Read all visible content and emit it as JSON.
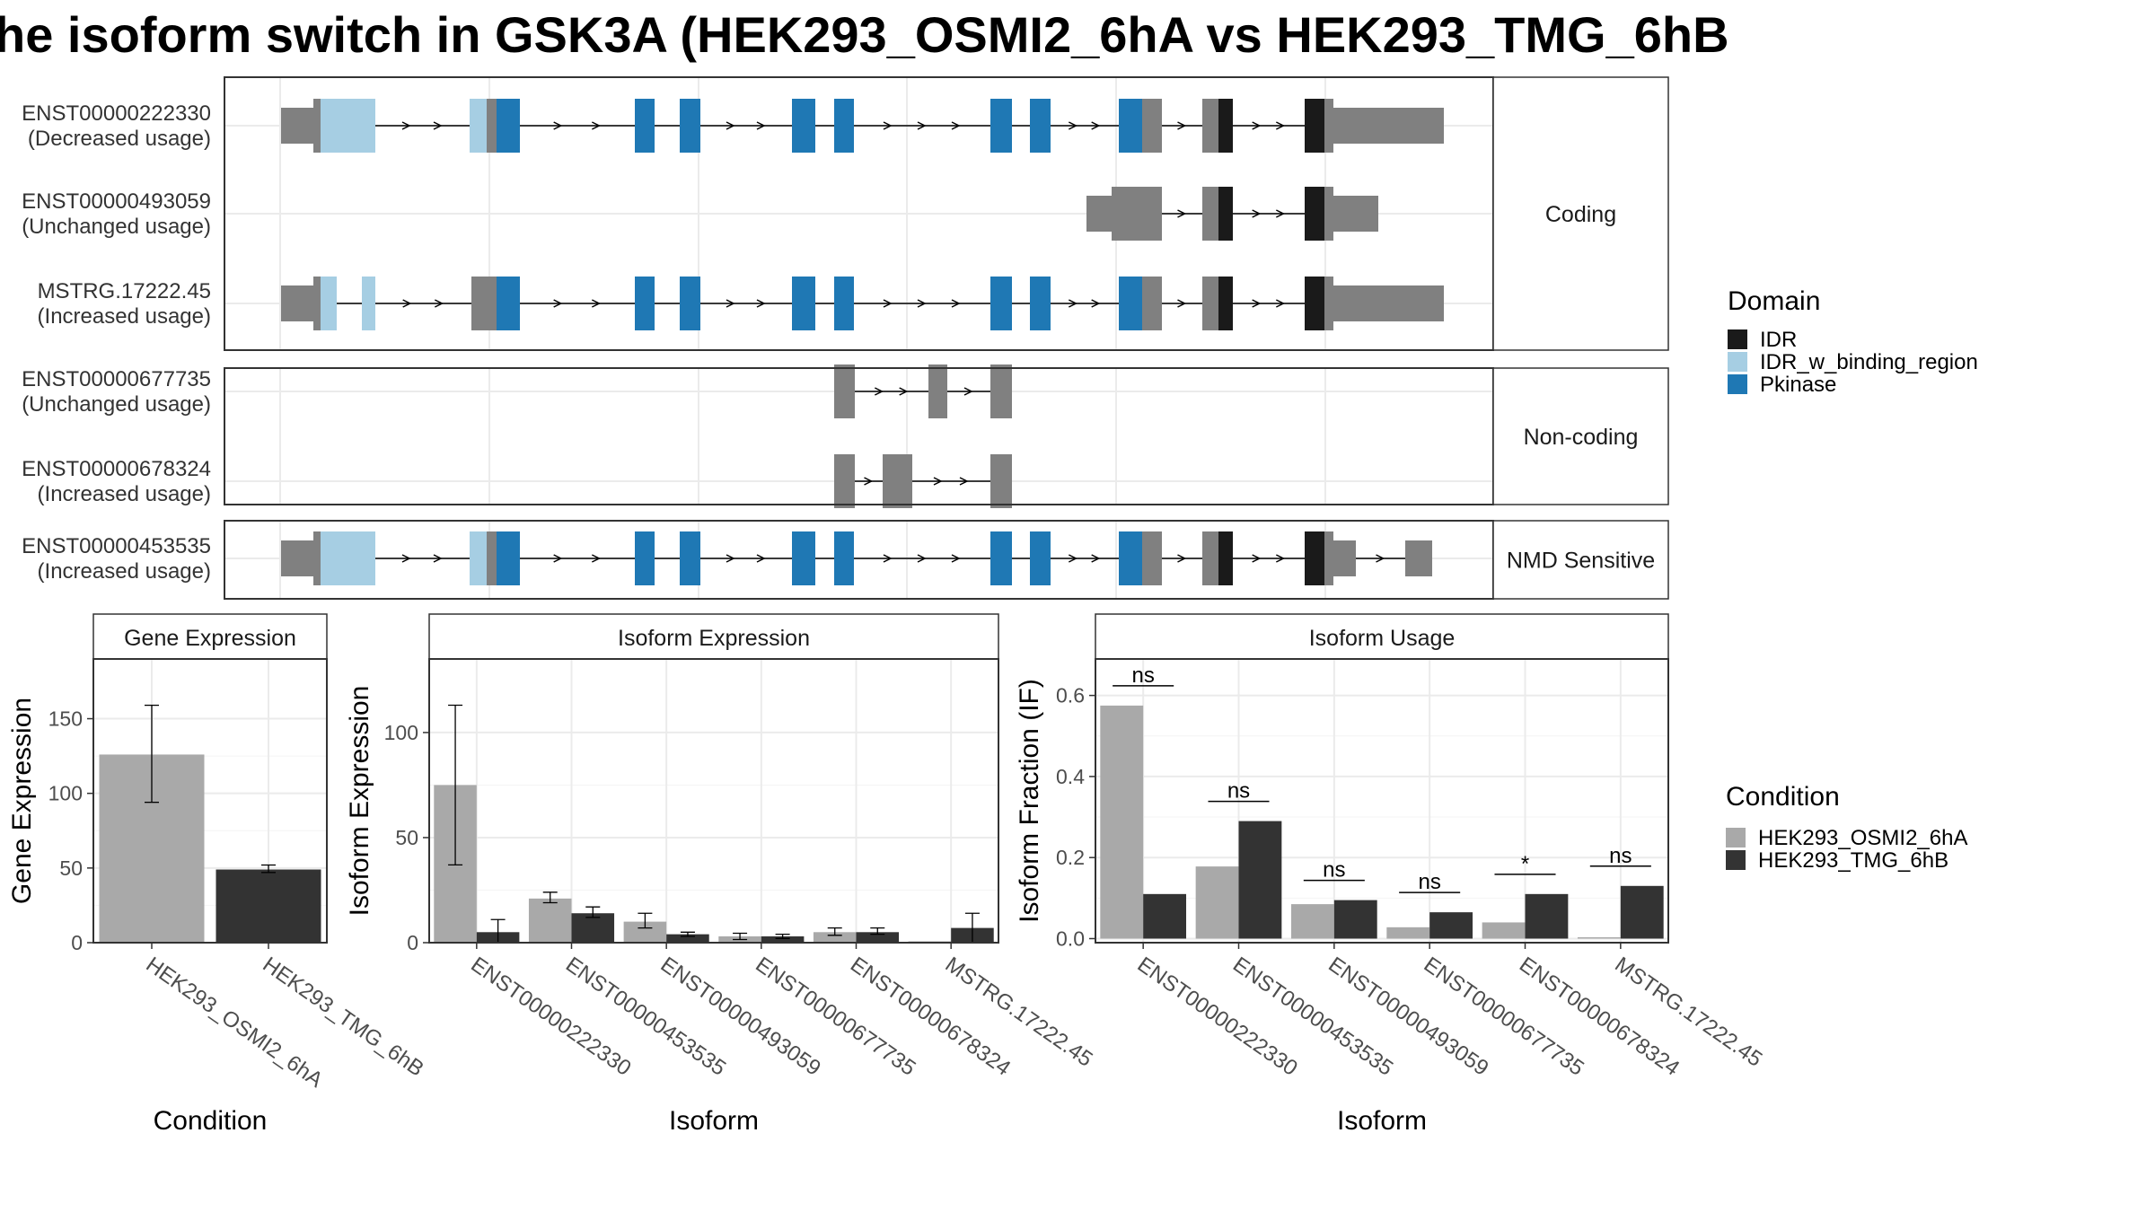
{
  "title": "he isoform switch in GSK3A (HEK293_OSMI2_6hA vs HEK293_TMG_6hB",
  "colors": {
    "IDR": "#1a1a1a",
    "IDR_w_binding_region": "#a6cee3",
    "Pkinase": "#1f78b4",
    "exon": "#808080",
    "cond_a": "#a9a9a9",
    "cond_b": "#333333",
    "panel_bg": "#ffffff",
    "strip_bg": "#ffffff",
    "grid": "#ebebeb",
    "border": "#333333"
  },
  "legend_domain": {
    "title": "Domain",
    "items": [
      {
        "label": "IDR",
        "color": "#1a1a1a"
      },
      {
        "label": "IDR_w_binding_region",
        "color": "#a6cee3"
      },
      {
        "label": "Pkinase",
        "color": "#1f78b4"
      }
    ]
  },
  "legend_condition": {
    "title": "Condition",
    "items": [
      {
        "label": "HEK293_OSMI2_6hA",
        "color": "#a9a9a9"
      },
      {
        "label": "HEK293_TMG_6hB",
        "color": "#333333"
      }
    ]
  },
  "structure_groups": [
    {
      "label": "Coding",
      "tracks": [
        {
          "id": "ENST00000222330",
          "usage": "(Decreased usage)"
        },
        {
          "id": "ENST00000493059",
          "usage": "(Unchanged usage)"
        },
        {
          "id": "MSTRG.17222.45",
          "usage": "(Increased usage)"
        }
      ]
    },
    {
      "label": "Non-coding",
      "tracks": [
        {
          "id": "ENST00000677735",
          "usage": "(Unchanged usage)"
        },
        {
          "id": "ENST00000678324",
          "usage": "(Increased usage)"
        }
      ]
    },
    {
      "label": "NMD Sensitive",
      "tracks": [
        {
          "id": "ENST00000453535",
          "usage": "(Increased usage)"
        }
      ]
    }
  ],
  "chart_data": [
    {
      "type": "bar",
      "panel": "Gene Expression",
      "xlabel": "Condition",
      "ylabel": "Gene Expression",
      "ylim": [
        0,
        190
      ],
      "yticks": [
        0,
        50,
        100,
        150
      ],
      "categories": [
        "HEK293_OSMI2_6hA",
        "HEK293_TMG_6hB"
      ],
      "series": [
        {
          "values": [
            126,
            49
          ],
          "errors": [
            [
              94,
              159
            ],
            [
              47,
              52
            ]
          ]
        }
      ],
      "grid": true
    },
    {
      "type": "bar",
      "panel": "Isoform Expression",
      "xlabel": "Isoform",
      "ylabel": "Isoform Expression",
      "ylim": [
        0,
        135
      ],
      "yticks": [
        0,
        50,
        100
      ],
      "categories": [
        "ENST00000222330",
        "ENST00000453535",
        "ENST00000493059",
        "ENST00000677735",
        "ENST00000678324",
        "MSTRG.17222.45"
      ],
      "series": [
        {
          "name": "HEK293_OSMI2_6hA",
          "values": [
            75,
            21,
            10,
            3,
            5,
            0
          ],
          "errors": [
            [
              37,
              113
            ],
            [
              19,
              24
            ],
            [
              7,
              14
            ],
            [
              1.5,
              4.5
            ],
            [
              3.5,
              7
            ],
            [
              0,
              0
            ]
          ]
        },
        {
          "name": "HEK293_TMG_6hB",
          "values": [
            5,
            14,
            4,
            3,
            5,
            7
          ],
          "errors": [
            [
              0,
              11
            ],
            [
              12,
              17
            ],
            [
              3,
              5
            ],
            [
              2,
              4
            ],
            [
              4,
              7
            ],
            [
              0,
              14
            ]
          ]
        }
      ],
      "grid": true
    },
    {
      "type": "bar",
      "panel": "Isoform Usage",
      "xlabel": "Isoform",
      "ylabel": "Isoform Fraction (IF)",
      "ylim": [
        -0.01,
        0.69
      ],
      "yticks": [
        0.0,
        0.2,
        0.4,
        0.6
      ],
      "ytick_labels": [
        "0.0",
        "0.2",
        "0.4",
        "0.6"
      ],
      "categories": [
        "ENST00000222330",
        "ENST00000453535",
        "ENST00000493059",
        "ENST00000677735",
        "ENST00000678324",
        "MSTRG.17222.45"
      ],
      "series": [
        {
          "name": "HEK293_OSMI2_6hA",
          "values": [
            0.575,
            0.178,
            0.085,
            0.028,
            0.04,
            0.0
          ]
        },
        {
          "name": "HEK293_TMG_6hB",
          "values": [
            0.11,
            0.29,
            0.095,
            0.065,
            0.11,
            0.13
          ]
        }
      ],
      "significance": [
        "ns",
        "ns",
        "ns",
        "ns",
        "*",
        "ns"
      ],
      "grid": true
    }
  ]
}
